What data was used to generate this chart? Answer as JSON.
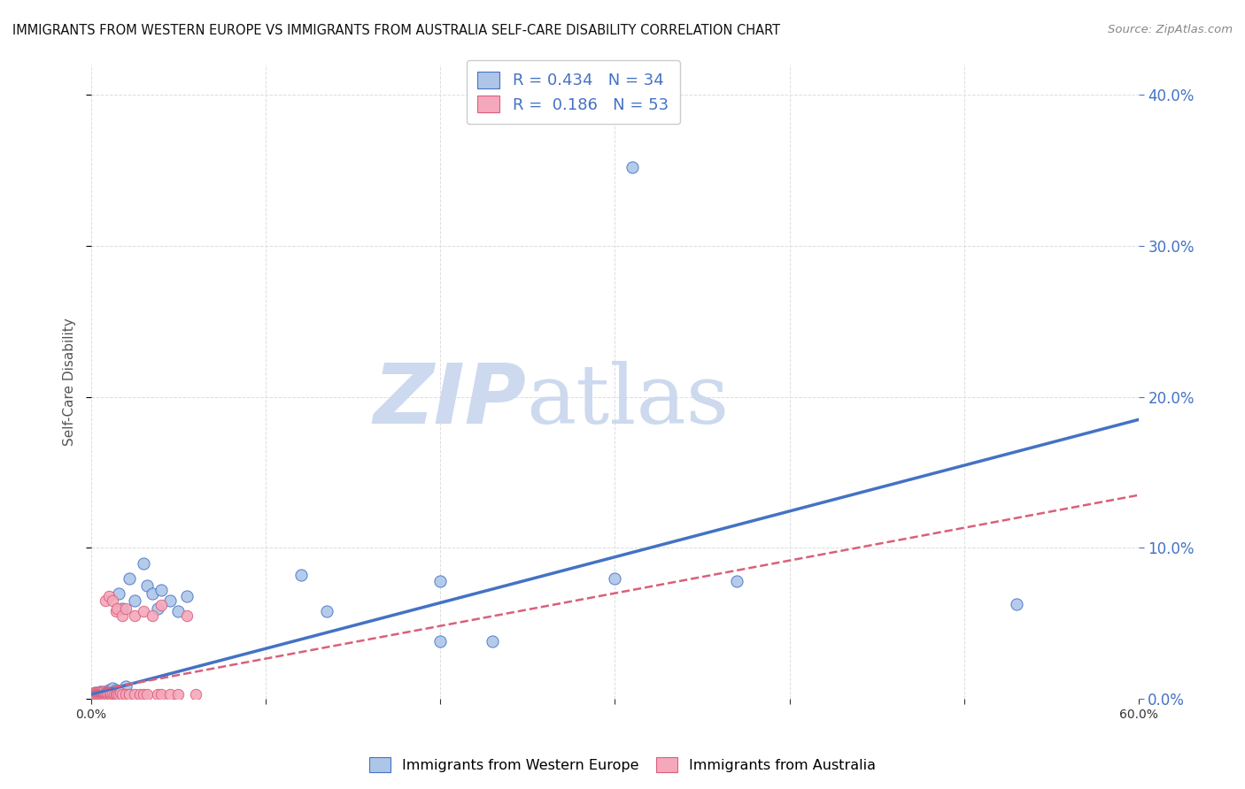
{
  "title": "IMMIGRANTS FROM WESTERN EUROPE VS IMMIGRANTS FROM AUSTRALIA SELF-CARE DISABILITY CORRELATION CHART",
  "source": "Source: ZipAtlas.com",
  "ylabel": "Self-Care Disability",
  "legend_label1": "Immigrants from Western Europe",
  "legend_label2": "Immigrants from Australia",
  "R1": 0.434,
  "N1": 34,
  "R2": 0.186,
  "N2": 53,
  "color_blue": "#adc6e8",
  "color_pink": "#f5a8bc",
  "line_blue": "#4472C4",
  "line_pink": "#d9607a",
  "xlim": [
    0.0,
    0.6
  ],
  "ylim": [
    0.0,
    0.42
  ],
  "blue_line_x": [
    0.0,
    0.6
  ],
  "blue_line_y": [
    0.003,
    0.185
  ],
  "pink_line_x": [
    0.0,
    0.6
  ],
  "pink_line_y": [
    0.005,
    0.135
  ],
  "blue_scatter": [
    [
      0.001,
      0.003
    ],
    [
      0.002,
      0.004
    ],
    [
      0.003,
      0.003
    ],
    [
      0.004,
      0.004
    ],
    [
      0.005,
      0.005
    ],
    [
      0.006,
      0.004
    ],
    [
      0.007,
      0.005
    ],
    [
      0.008,
      0.004
    ],
    [
      0.009,
      0.005
    ],
    [
      0.01,
      0.006
    ],
    [
      0.012,
      0.007
    ],
    [
      0.014,
      0.006
    ],
    [
      0.016,
      0.07
    ],
    [
      0.018,
      0.06
    ],
    [
      0.02,
      0.008
    ],
    [
      0.022,
      0.08
    ],
    [
      0.025,
      0.065
    ],
    [
      0.03,
      0.09
    ],
    [
      0.032,
      0.075
    ],
    [
      0.035,
      0.07
    ],
    [
      0.038,
      0.06
    ],
    [
      0.04,
      0.072
    ],
    [
      0.045,
      0.065
    ],
    [
      0.05,
      0.058
    ],
    [
      0.055,
      0.068
    ],
    [
      0.12,
      0.082
    ],
    [
      0.135,
      0.058
    ],
    [
      0.2,
      0.078
    ],
    [
      0.23,
      0.038
    ],
    [
      0.3,
      0.08
    ],
    [
      0.37,
      0.078
    ],
    [
      0.53,
      0.063
    ],
    [
      0.31,
      0.352
    ],
    [
      0.2,
      0.038
    ]
  ],
  "pink_scatter": [
    [
      0.001,
      0.003
    ],
    [
      0.002,
      0.004
    ],
    [
      0.002,
      0.003
    ],
    [
      0.003,
      0.003
    ],
    [
      0.003,
      0.004
    ],
    [
      0.004,
      0.003
    ],
    [
      0.004,
      0.004
    ],
    [
      0.005,
      0.003
    ],
    [
      0.005,
      0.004
    ],
    [
      0.005,
      0.005
    ],
    [
      0.006,
      0.003
    ],
    [
      0.006,
      0.004
    ],
    [
      0.006,
      0.005
    ],
    [
      0.007,
      0.003
    ],
    [
      0.007,
      0.004
    ],
    [
      0.007,
      0.005
    ],
    [
      0.008,
      0.004
    ],
    [
      0.008,
      0.065
    ],
    [
      0.009,
      0.003
    ],
    [
      0.009,
      0.004
    ],
    [
      0.01,
      0.068
    ],
    [
      0.01,
      0.004
    ],
    [
      0.011,
      0.003
    ],
    [
      0.011,
      0.004
    ],
    [
      0.012,
      0.065
    ],
    [
      0.012,
      0.004
    ],
    [
      0.013,
      0.003
    ],
    [
      0.014,
      0.003
    ],
    [
      0.014,
      0.058
    ],
    [
      0.015,
      0.003
    ],
    [
      0.015,
      0.06
    ],
    [
      0.016,
      0.003
    ],
    [
      0.017,
      0.004
    ],
    [
      0.018,
      0.003
    ],
    [
      0.018,
      0.055
    ],
    [
      0.02,
      0.06
    ],
    [
      0.02,
      0.003
    ],
    [
      0.022,
      0.003
    ],
    [
      0.022,
      0.003
    ],
    [
      0.025,
      0.003
    ],
    [
      0.025,
      0.055
    ],
    [
      0.028,
      0.003
    ],
    [
      0.03,
      0.058
    ],
    [
      0.03,
      0.003
    ],
    [
      0.032,
      0.003
    ],
    [
      0.035,
      0.055
    ],
    [
      0.038,
      0.003
    ],
    [
      0.04,
      0.062
    ],
    [
      0.04,
      0.003
    ],
    [
      0.045,
      0.003
    ],
    [
      0.05,
      0.003
    ],
    [
      0.055,
      0.055
    ],
    [
      0.06,
      0.003
    ]
  ],
  "watermark_zip": "ZIP",
  "watermark_atlas": "atlas",
  "watermark_color": "#ccd9ee",
  "background_color": "#ffffff",
  "grid_color": "#dddddd"
}
